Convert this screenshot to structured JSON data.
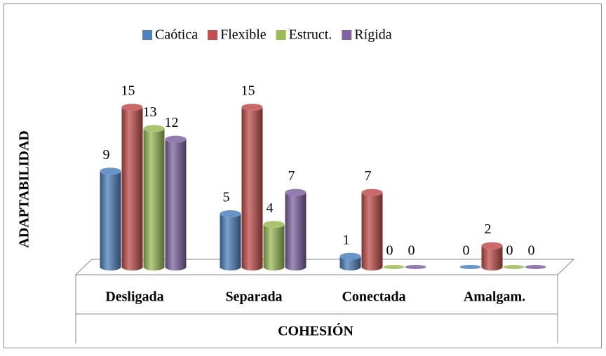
{
  "chart_data": {
    "type": "bar",
    "categories": [
      "Desligada",
      "Separada",
      "Conectada",
      "Amalgam."
    ],
    "series": [
      {
        "name": "Caótica",
        "color": "#4f81bd",
        "values": [
          9,
          5,
          1,
          0
        ]
      },
      {
        "name": "Flexible",
        "color": "#c0504d",
        "values": [
          15,
          15,
          7,
          2
        ]
      },
      {
        "name": "Estruct.",
        "color": "#9bbb59",
        "values": [
          13,
          4,
          0,
          0
        ]
      },
      {
        "name": "Rígida",
        "color": "#8064a2",
        "values": [
          12,
          7,
          0,
          0
        ]
      }
    ],
    "x_label": "COHESIÓN",
    "y_label": "ADAPTABILIDAD",
    "legend": "top"
  }
}
